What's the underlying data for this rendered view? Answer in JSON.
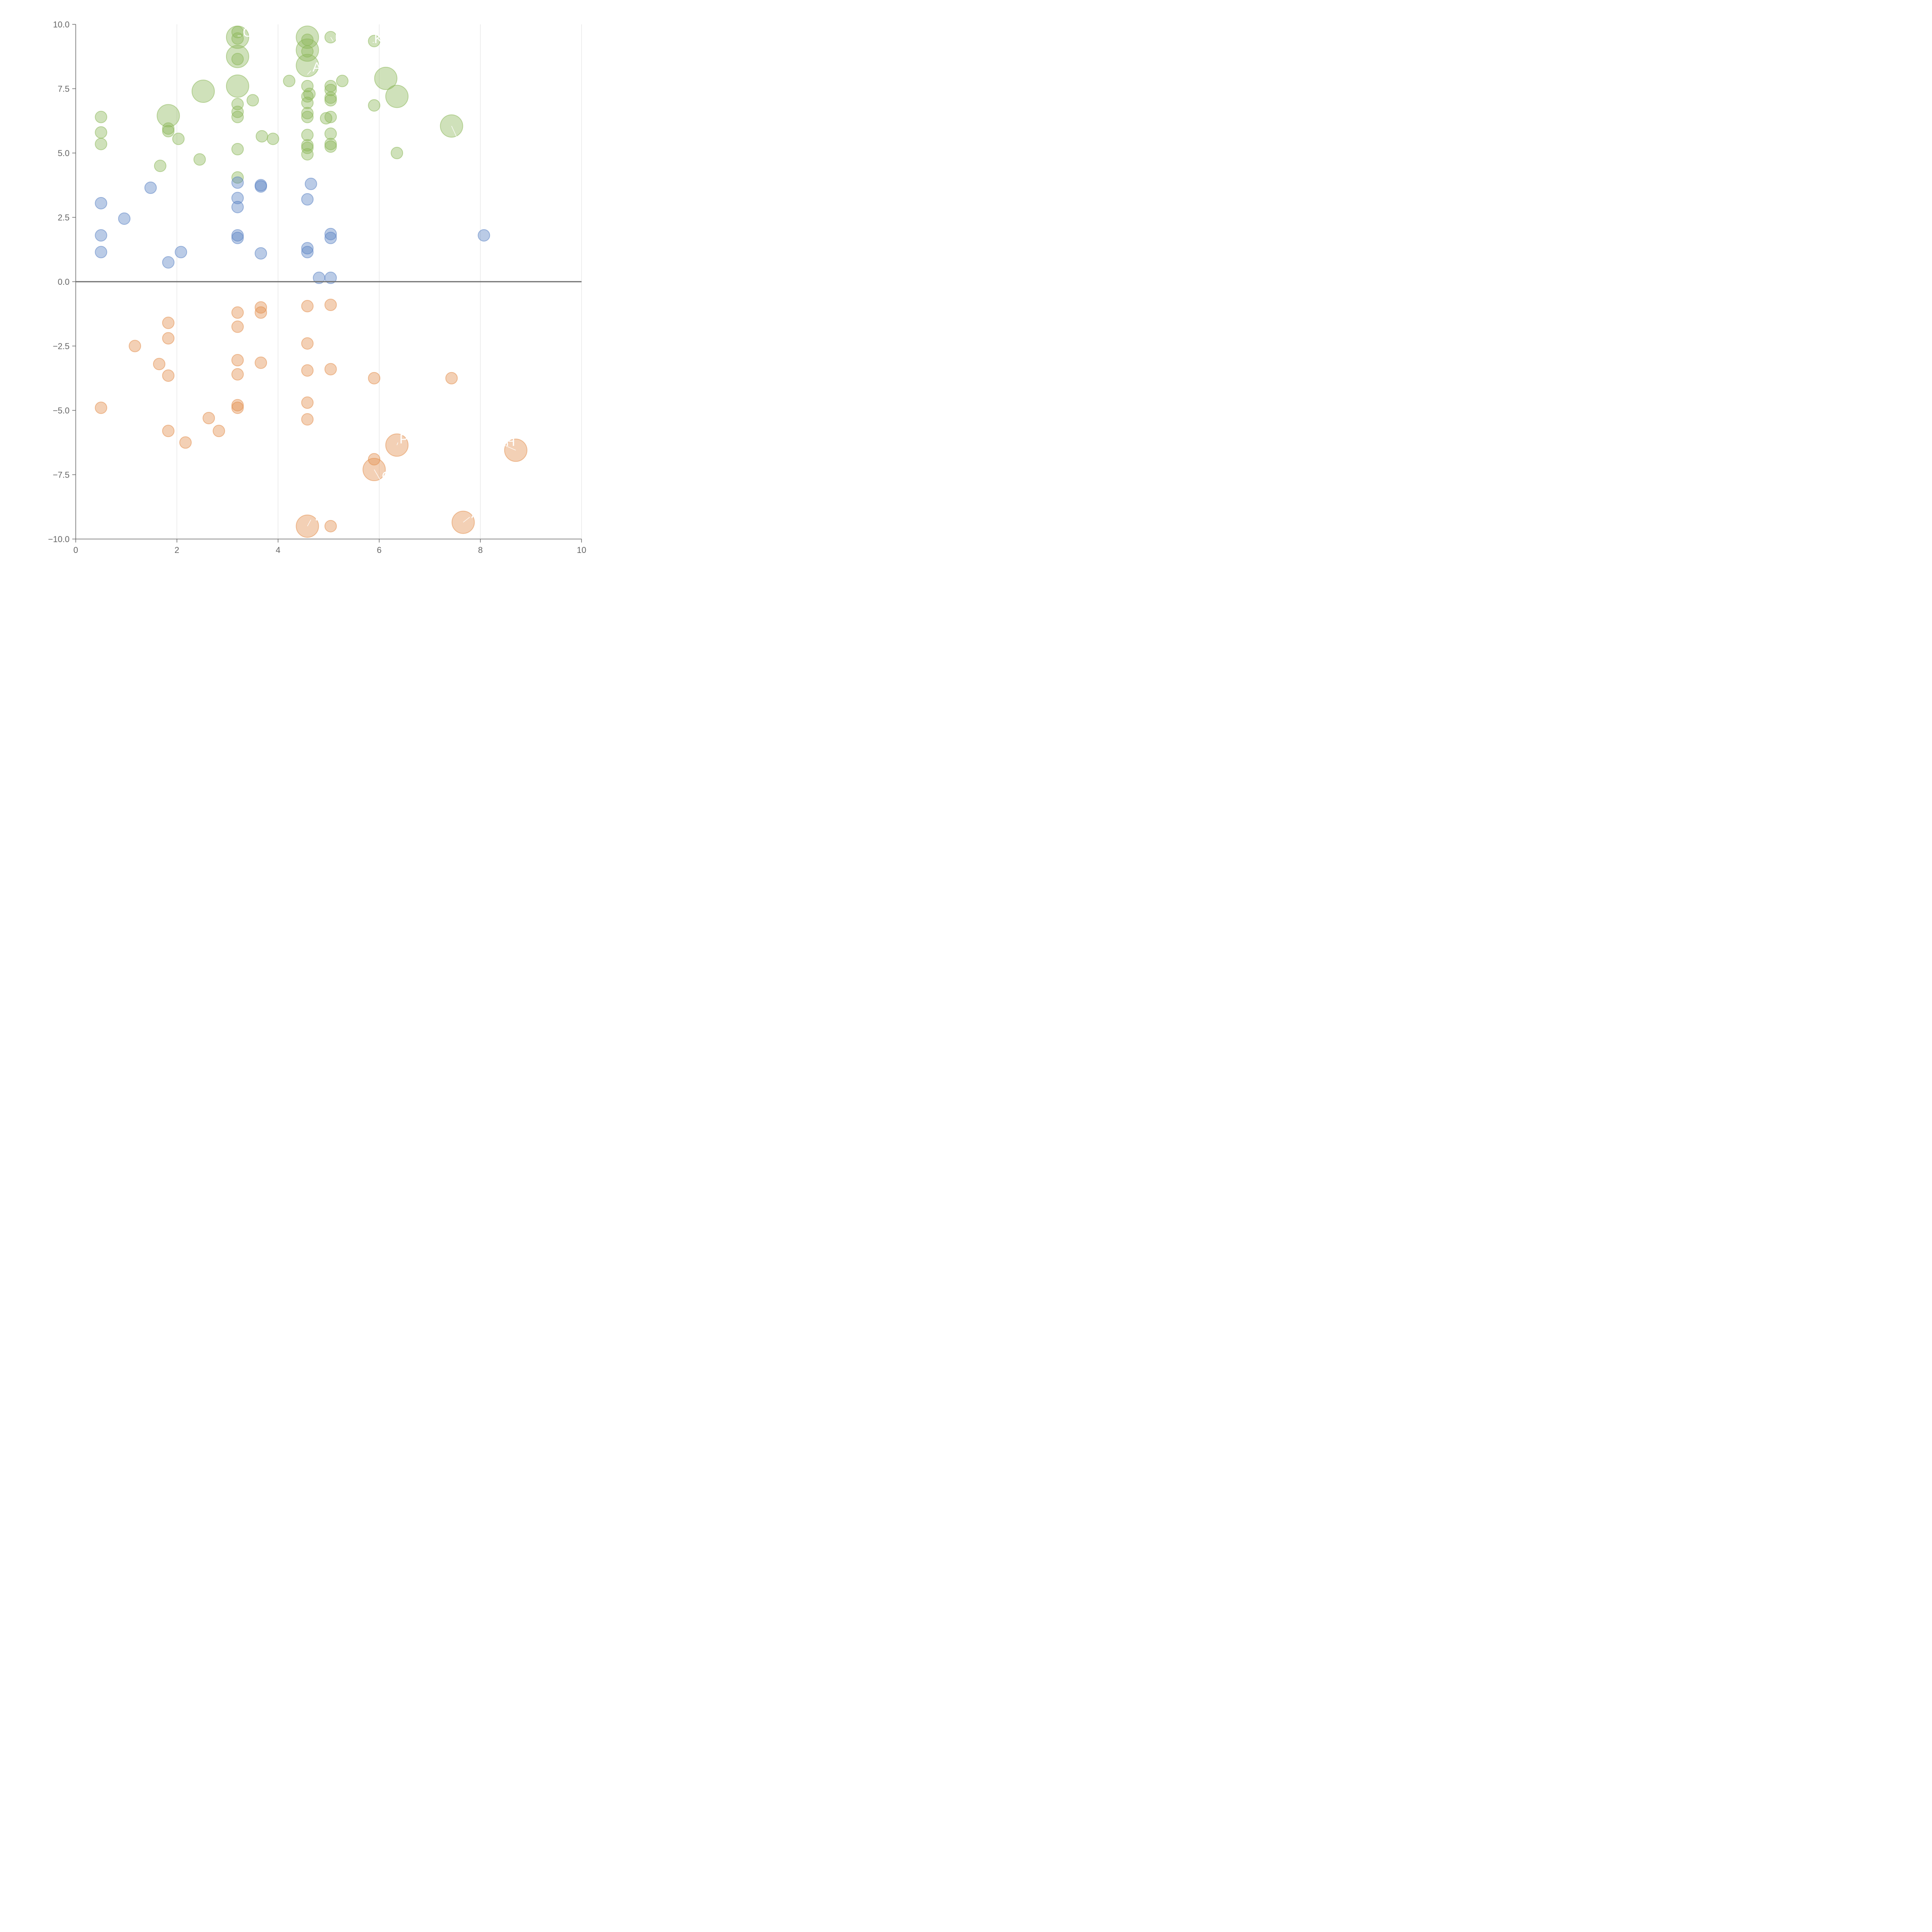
{
  "chart_data": {
    "type": "scatter",
    "title": "",
    "xlabel": "",
    "ylabel": "",
    "xlim": [
      0,
      10
    ],
    "ylim": [
      -10,
      10
    ],
    "xticks": [
      "0",
      "2",
      "4",
      "6",
      "8",
      "10"
    ],
    "yticks": [
      "10.0",
      "7.5",
      "5.0",
      "2.5",
      "0.0",
      "−2.5",
      "−5.0",
      "−7.5",
      "−10.0"
    ],
    "grid": "vertical",
    "legend": "none",
    "colors": {
      "green": "#8db85a",
      "blue": "#5b84c4",
      "orange": "#e3904e",
      "axis": "#666666",
      "zero_line": "#6e6e6e",
      "grid": "#dddddd",
      "label": "#ffffff"
    },
    "series": [
      {
        "name": "green",
        "points": [
          {
            "x": 3.2,
            "y": 9.7
          },
          {
            "x": 3.2,
            "y": 9.45
          },
          {
            "x": 3.2,
            "y": 9.5,
            "big": true
          },
          {
            "x": 3.2,
            "y": 8.65
          },
          {
            "x": 3.2,
            "y": 8.75,
            "big": true
          },
          {
            "x": 3.2,
            "y": 7.6,
            "big": true
          },
          {
            "x": 3.2,
            "y": 6.9
          },
          {
            "x": 3.2,
            "y": 6.6
          },
          {
            "x": 3.2,
            "y": 6.4
          },
          {
            "x": 3.2,
            "y": 5.15
          },
          {
            "x": 3.2,
            "y": 4.05
          },
          {
            "x": 4.58,
            "y": 9.5,
            "big": true
          },
          {
            "x": 4.58,
            "y": 9.4
          },
          {
            "x": 4.58,
            "y": 9.0,
            "big": true
          },
          {
            "x": 4.58,
            "y": 8.95
          },
          {
            "x": 4.58,
            "y": 8.4,
            "big": true
          },
          {
            "x": 4.58,
            "y": 7.6
          },
          {
            "x": 4.62,
            "y": 7.3
          },
          {
            "x": 4.58,
            "y": 7.2
          },
          {
            "x": 4.58,
            "y": 6.95
          },
          {
            "x": 4.58,
            "y": 6.55
          },
          {
            "x": 4.58,
            "y": 6.4
          },
          {
            "x": 4.58,
            "y": 5.7
          },
          {
            "x": 4.58,
            "y": 5.3
          },
          {
            "x": 4.58,
            "y": 5.2
          },
          {
            "x": 4.58,
            "y": 4.95
          },
          {
            "x": 5.04,
            "y": 9.5
          },
          {
            "x": 5.04,
            "y": 7.6
          },
          {
            "x": 5.04,
            "y": 7.45
          },
          {
            "x": 5.04,
            "y": 7.15
          },
          {
            "x": 5.04,
            "y": 7.05
          },
          {
            "x": 5.04,
            "y": 6.4
          },
          {
            "x": 4.95,
            "y": 6.35
          },
          {
            "x": 5.04,
            "y": 5.75
          },
          {
            "x": 5.04,
            "y": 5.35
          },
          {
            "x": 5.04,
            "y": 5.25
          },
          {
            "x": 5.9,
            "y": 9.35
          },
          {
            "x": 6.13,
            "y": 7.9,
            "big": true
          },
          {
            "x": 6.35,
            "y": 7.2,
            "big": true
          },
          {
            "x": 5.9,
            "y": 6.85
          },
          {
            "x": 6.35,
            "y": 5.0
          },
          {
            "x": 7.43,
            "y": 6.05,
            "big": true
          },
          {
            "x": 4.22,
            "y": 7.8
          },
          {
            "x": 5.27,
            "y": 7.8
          },
          {
            "x": 3.9,
            "y": 5.55
          },
          {
            "x": 3.68,
            "y": 5.65
          },
          {
            "x": 3.5,
            "y": 7.05
          },
          {
            "x": 2.52,
            "y": 7.4,
            "big": true
          },
          {
            "x": 1.83,
            "y": 6.45,
            "big": true
          },
          {
            "x": 1.83,
            "y": 5.95
          },
          {
            "x": 1.83,
            "y": 5.85
          },
          {
            "x": 2.03,
            "y": 5.55
          },
          {
            "x": 0.5,
            "y": 6.4
          },
          {
            "x": 0.5,
            "y": 5.8
          },
          {
            "x": 0.5,
            "y": 5.35
          },
          {
            "x": 1.67,
            "y": 4.5
          },
          {
            "x": 2.45,
            "y": 4.75
          }
        ]
      },
      {
        "name": "blue",
        "points": [
          {
            "x": 0.5,
            "y": 3.05
          },
          {
            "x": 0.5,
            "y": 1.8
          },
          {
            "x": 0.5,
            "y": 1.15
          },
          {
            "x": 0.96,
            "y": 2.45
          },
          {
            "x": 1.48,
            "y": 3.65
          },
          {
            "x": 1.83,
            "y": 0.75
          },
          {
            "x": 2.08,
            "y": 1.15
          },
          {
            "x": 3.2,
            "y": 3.85
          },
          {
            "x": 3.2,
            "y": 3.25
          },
          {
            "x": 3.2,
            "y": 2.9
          },
          {
            "x": 3.2,
            "y": 1.8
          },
          {
            "x": 3.2,
            "y": 1.7
          },
          {
            "x": 3.66,
            "y": 3.75
          },
          {
            "x": 3.66,
            "y": 3.7
          },
          {
            "x": 3.66,
            "y": 1.1
          },
          {
            "x": 4.58,
            "y": 3.2
          },
          {
            "x": 4.65,
            "y": 3.8
          },
          {
            "x": 4.58,
            "y": 1.3
          },
          {
            "x": 4.58,
            "y": 1.15
          },
          {
            "x": 4.81,
            "y": 0.15
          },
          {
            "x": 5.04,
            "y": 1.85
          },
          {
            "x": 5.04,
            "y": 1.7
          },
          {
            "x": 5.04,
            "y": 0.15
          },
          {
            "x": 8.07,
            "y": 1.8
          }
        ]
      },
      {
        "name": "orange",
        "points": [
          {
            "x": 0.5,
            "y": -4.9
          },
          {
            "x": 1.17,
            "y": -2.5
          },
          {
            "x": 1.65,
            "y": -3.2
          },
          {
            "x": 1.83,
            "y": -1.6
          },
          {
            "x": 1.83,
            "y": -2.2
          },
          {
            "x": 1.83,
            "y": -3.65
          },
          {
            "x": 1.83,
            "y": -5.8
          },
          {
            "x": 2.17,
            "y": -6.25
          },
          {
            "x": 2.63,
            "y": -5.3
          },
          {
            "x": 2.83,
            "y": -5.8
          },
          {
            "x": 3.2,
            "y": -1.2
          },
          {
            "x": 3.2,
            "y": -1.75
          },
          {
            "x": 3.2,
            "y": -3.05
          },
          {
            "x": 3.2,
            "y": -3.6
          },
          {
            "x": 3.2,
            "y": -4.8
          },
          {
            "x": 3.2,
            "y": -4.9
          },
          {
            "x": 3.66,
            "y": -1.0
          },
          {
            "x": 3.66,
            "y": -1.2
          },
          {
            "x": 3.66,
            "y": -3.15
          },
          {
            "x": 4.58,
            "y": -0.95
          },
          {
            "x": 4.58,
            "y": -2.4
          },
          {
            "x": 4.58,
            "y": -3.45
          },
          {
            "x": 4.58,
            "y": -4.7
          },
          {
            "x": 4.58,
            "y": -5.35
          },
          {
            "x": 4.58,
            "y": -9.5,
            "big": true
          },
          {
            "x": 5.04,
            "y": -0.9
          },
          {
            "x": 5.04,
            "y": -3.4
          },
          {
            "x": 5.04,
            "y": -9.5
          },
          {
            "x": 5.9,
            "y": -3.75
          },
          {
            "x": 5.9,
            "y": -6.9
          },
          {
            "x": 5.9,
            "y": -7.3,
            "big": true
          },
          {
            "x": 6.35,
            "y": -6.35,
            "big": true
          },
          {
            "x": 7.43,
            "y": -3.75
          },
          {
            "x": 7.66,
            "y": -9.35,
            "big": true
          },
          {
            "x": 8.7,
            "y": -6.55,
            "big": true
          }
        ]
      }
    ],
    "annotations": [
      {
        "text": "OI",
        "x": 3.3,
        "y": 9.7,
        "lx": 3.2,
        "ly": 9.55
      },
      {
        "text": "A",
        "x": 4.68,
        "y": 8.35,
        "lx": 4.58,
        "ly": 8.05
      },
      {
        "text": "N",
        "x": 5.12,
        "y": 9.5,
        "lx": 5.04,
        "ly": 9.5
      },
      {
        "text": "K",
        "x": 5.9,
        "y": 9.45,
        "lx": 5.9,
        "ly": 9.3
      },
      {
        "text": "F",
        "x": 7.6,
        "y": 5.6,
        "lx": 7.43,
        "ly": 6.05
      },
      {
        "text": "P",
        "x": 6.4,
        "y": -6.1,
        "lx": 6.35,
        "ly": -6.35
      },
      {
        "text": "H",
        "x": 8.5,
        "y": -6.2,
        "lx": 8.7,
        "ly": -6.55
      },
      {
        "text": "C",
        "x": 6.05,
        "y": -7.55,
        "lx": 5.9,
        "ly": -7.3
      },
      {
        "text": "A",
        "x": 7.82,
        "y": -9.0,
        "lx": 7.66,
        "ly": -9.35
      },
      {
        "text": "T",
        "x": 4.68,
        "y": -9.1,
        "lx": 4.58,
        "ly": -9.5
      }
    ]
  }
}
